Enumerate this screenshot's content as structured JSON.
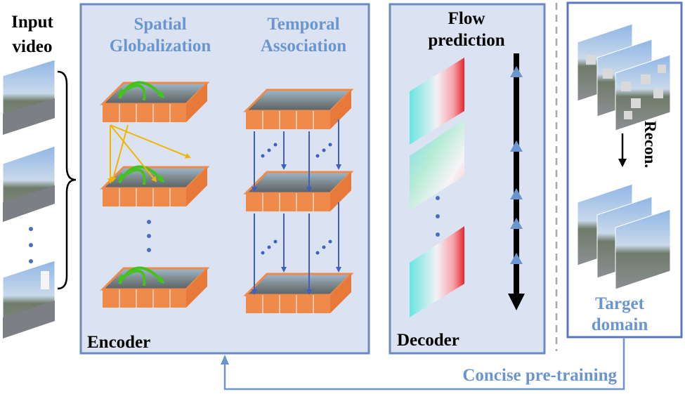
{
  "input": {
    "line1": "Input",
    "line2": "video"
  },
  "encoder": {
    "label": "Encoder",
    "spatial_line1": "Spatial",
    "spatial_line2": "Globalization",
    "temporal_line1": "Temporal",
    "temporal_line2": "Association"
  },
  "decoder": {
    "label": "Decoder",
    "flow_line1": "Flow",
    "flow_line2": "prediction"
  },
  "target": {
    "recon": "Recon.",
    "line1": "Target",
    "line2": "domain"
  },
  "pretraining": "Concise pre-training",
  "colors": {
    "panel_fill": "#dbe3f2",
    "panel_border": "#6b89c6",
    "accent_blue": "#6b95cf",
    "token_orange": "#ef8a4a",
    "attention_green": "#44c21f",
    "spatial_arrow_yellow": "#f2b400",
    "temporal_arrow_blue": "#3f5fc4"
  }
}
